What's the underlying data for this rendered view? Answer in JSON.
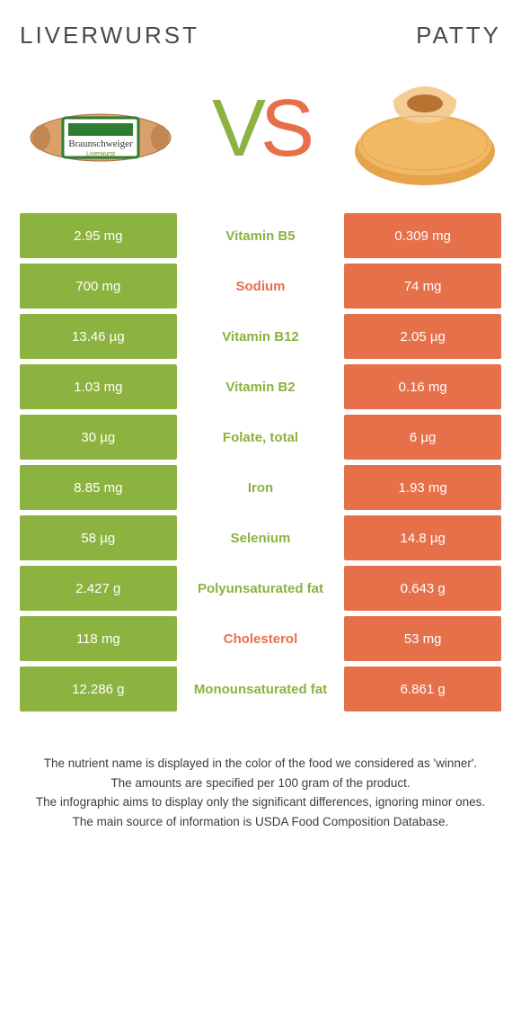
{
  "left_food": {
    "name": "Liverwurst",
    "color": "#8cb23f"
  },
  "right_food": {
    "name": "Patty",
    "color": "#e6704a"
  },
  "vs_label_v": "V",
  "vs_label_s": "S",
  "rows": [
    {
      "label": "Vitamin B5",
      "left": "2.95 mg",
      "right": "0.309 mg",
      "winner": "left"
    },
    {
      "label": "Sodium",
      "left": "700 mg",
      "right": "74 mg",
      "winner": "right"
    },
    {
      "label": "Vitamin B12",
      "left": "13.46 µg",
      "right": "2.05 µg",
      "winner": "left"
    },
    {
      "label": "Vitamin B2",
      "left": "1.03 mg",
      "right": "0.16 mg",
      "winner": "left"
    },
    {
      "label": "Folate, total",
      "left": "30 µg",
      "right": "6 µg",
      "winner": "left"
    },
    {
      "label": "Iron",
      "left": "8.85 mg",
      "right": "1.93 mg",
      "winner": "left"
    },
    {
      "label": "Selenium",
      "left": "58 µg",
      "right": "14.8 µg",
      "winner": "left"
    },
    {
      "label": "Polyunsaturated fat",
      "left": "2.427 g",
      "right": "0.643 g",
      "winner": "left"
    },
    {
      "label": "Cholesterol",
      "left": "118 mg",
      "right": "53 mg",
      "winner": "right"
    },
    {
      "label": "Monounsaturated fat",
      "left": "12.286 g",
      "right": "6.861 g",
      "winner": "left"
    }
  ],
  "notes": [
    "The nutrient name is displayed in the color of the food we considered as 'winner'.",
    "The amounts are specified per 100 gram of the product.",
    "The infographic aims to display only the significant differences, ignoring minor ones.",
    "The main source of information is USDA Food Composition Database."
  ]
}
